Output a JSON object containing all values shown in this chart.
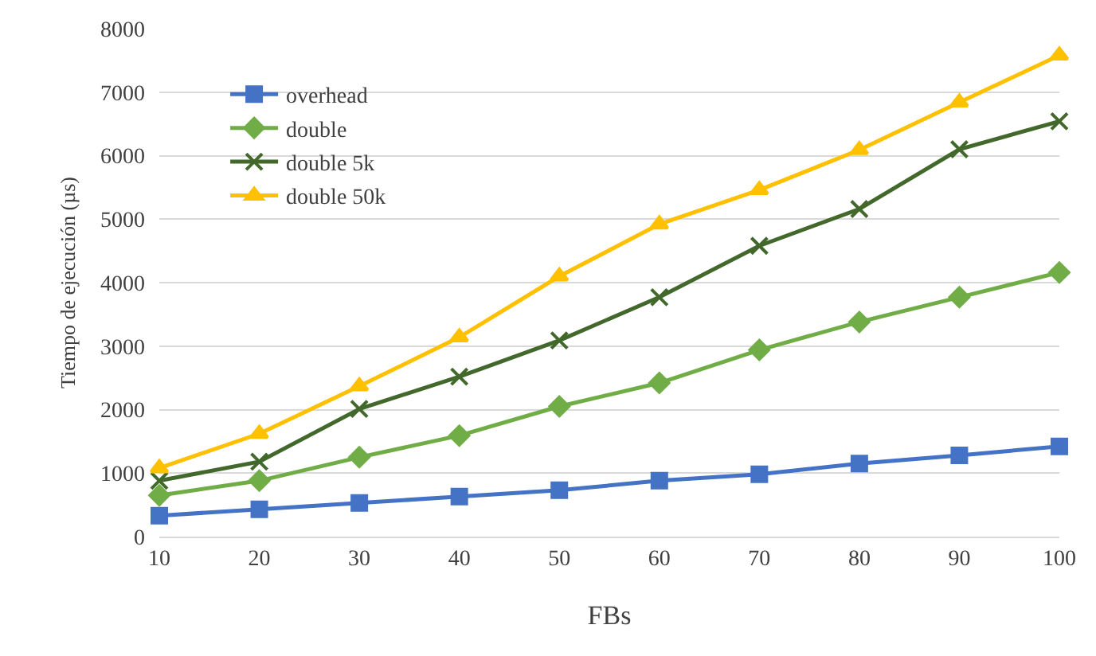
{
  "chart_data": {
    "type": "line",
    "xlabel": "FBs",
    "ylabel": "Tiempo de ejecución (µs)",
    "x": [
      10,
      20,
      30,
      40,
      50,
      60,
      70,
      80,
      90,
      100
    ],
    "xlim": [
      10,
      100
    ],
    "xticks": [
      10,
      20,
      30,
      40,
      50,
      60,
      70,
      80,
      90,
      100
    ],
    "ylim": [
      0,
      8000
    ],
    "yticks": [
      0,
      1000,
      2000,
      3000,
      4000,
      5000,
      6000,
      7000,
      8000
    ],
    "grid": "y",
    "legend": "top left",
    "line_style": "solid",
    "series": [
      {
        "name": "overhead",
        "color": "#4472c4",
        "marker": "square",
        "values": [
          330,
          430,
          530,
          630,
          730,
          880,
          980,
          1150,
          1280,
          1420
        ]
      },
      {
        "name": "double",
        "color": "#70ad47",
        "marker": "diamond",
        "values": [
          650,
          880,
          1250,
          1590,
          2050,
          2420,
          2940,
          3380,
          3770,
          4160
        ]
      },
      {
        "name": "double 5k",
        "color": "#43682b",
        "marker": "cross",
        "values": [
          880,
          1180,
          2010,
          2520,
          3090,
          3770,
          4580,
          5160,
          6100,
          6540
        ]
      },
      {
        "name": "double 50k",
        "color": "#ffc000",
        "marker": "triangle",
        "values": [
          1080,
          1620,
          2370,
          3140,
          4100,
          4920,
          5460,
          6090,
          6840,
          7580
        ]
      }
    ]
  }
}
